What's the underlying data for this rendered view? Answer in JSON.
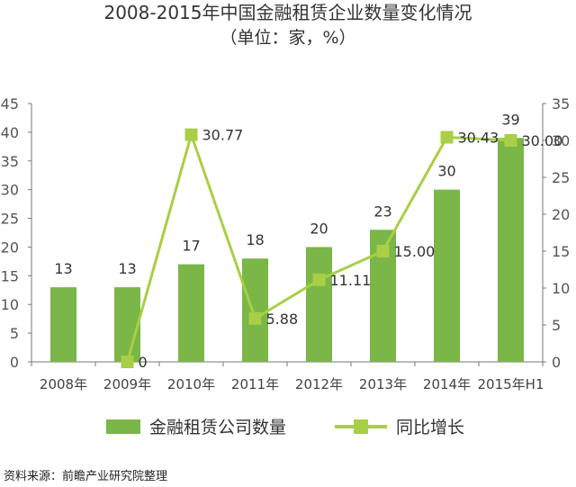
{
  "chart_data": {
    "type": "bar+line",
    "title": "2008-2015年中国金融租赁企业数量变化情况",
    "subtitle": "（单位：家，%）",
    "categories": [
      "2008年",
      "2009年",
      "2010年",
      "2011年",
      "2012年",
      "2013年",
      "2014年",
      "2015年H1"
    ],
    "series": [
      {
        "name": "金融租赁公司数量",
        "type": "bar",
        "axis": "left",
        "values": [
          13,
          13,
          17,
          18,
          20,
          23,
          30,
          39
        ],
        "labels": [
          "13",
          "13",
          "17",
          "18",
          "20",
          "23",
          "30",
          "39"
        ]
      },
      {
        "name": "同比增长",
        "type": "line",
        "axis": "right",
        "values": [
          null,
          0,
          30.77,
          5.88,
          11.11,
          15.0,
          30.43,
          30.0
        ],
        "labels": [
          "",
          "0",
          "30.77",
          "5.88",
          "11.11",
          "15.00",
          "30.43",
          "30.00"
        ]
      }
    ],
    "y_left": {
      "min": 0,
      "max": 45,
      "ticks": [
        "0",
        "5",
        "10",
        "15",
        "20",
        "25",
        "30",
        "35",
        "40",
        "45"
      ]
    },
    "y_right": {
      "min": 0,
      "max": 35,
      "ticks": [
        "0",
        "5",
        "10",
        "15",
        "20",
        "25",
        "30",
        "35"
      ]
    },
    "legend_position": "bottom",
    "colors": {
      "bar": "#7ab648",
      "line": "#a8cf45",
      "text": "#333333"
    }
  },
  "source": "资料来源：前瞻产业研究院整理"
}
